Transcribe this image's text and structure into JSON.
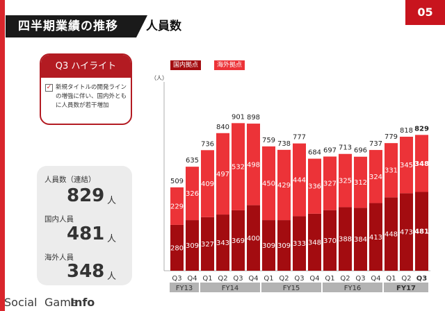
{
  "header": {
    "title": "四半期業績の推移",
    "subtitle": "人員数"
  },
  "page_number": "05",
  "highlight": {
    "heading": "Q3 ハイライト",
    "checked": true,
    "text": "新規タイトルの開発ラインの増強に伴い、国内外ともに人員数が若干増加"
  },
  "stats": [
    {
      "label": "人員数（連結）",
      "value": "829",
      "unit": "人"
    },
    {
      "label": "国内人員",
      "value": "481",
      "unit": "人"
    },
    {
      "label": "海外人員",
      "value": "348",
      "unit": "人"
    }
  ],
  "watermark": {
    "social": "Social",
    "game": "Game",
    "info": "Info"
  },
  "colors": {
    "accent": "#c8141e",
    "domestic": "#a30c10",
    "overseas": "#ec3338",
    "fy_box": "#b3b3b3"
  },
  "chart_data": {
    "type": "bar",
    "stacked": true,
    "unit": "（人）",
    "categories": [
      "Q3",
      "Q4",
      "Q1",
      "Q2",
      "Q3",
      "Q4",
      "Q1",
      "Q2",
      "Q3",
      "Q4",
      "Q1",
      "Q2",
      "Q3",
      "Q4",
      "Q1",
      "Q2",
      "Q3"
    ],
    "fiscal_years": [
      {
        "label": "FY13",
        "count": 2
      },
      {
        "label": "FY14",
        "count": 4
      },
      {
        "label": "FY15",
        "count": 4
      },
      {
        "label": "FY16",
        "count": 4
      },
      {
        "label": "FY17",
        "count": 3,
        "bold": true
      }
    ],
    "series": [
      {
        "name": "国内拠点",
        "color": "#a30c10",
        "values": [
          280,
          309,
          327,
          343,
          369,
          400,
          309,
          309,
          333,
          348,
          370,
          388,
          384,
          413,
          448,
          473,
          481
        ]
      },
      {
        "name": "海外拠点",
        "color": "#ec3338",
        "values": [
          229,
          326,
          409,
          497,
          532,
          498,
          450,
          429,
          444,
          336,
          327,
          325,
          312,
          324,
          331,
          345,
          348
        ]
      }
    ],
    "totals": [
      509,
      635,
      736,
      840,
      901,
      898,
      759,
      738,
      777,
      684,
      697,
      713,
      696,
      737,
      779,
      818,
      829
    ],
    "highlight_last": true,
    "legend_position": "top-left",
    "grid": false
  }
}
